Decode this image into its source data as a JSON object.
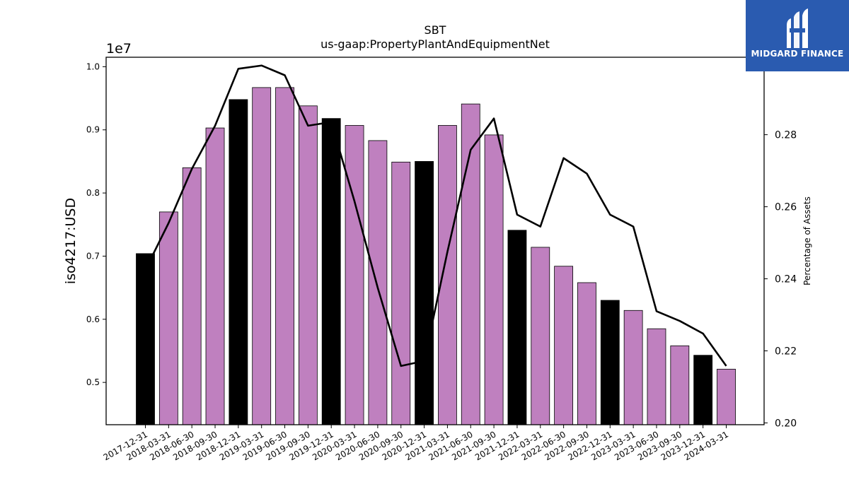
{
  "chart_data": {
    "type": "bar",
    "title": "SBT",
    "subtitle": "us-gaap:PropertyPlantAndEquipmentNet",
    "ylabel": "iso4217:USD",
    "y_offset_label": "1e7",
    "y2label": "Percentage of Assets",
    "ylim": [
      4330000,
      10150000
    ],
    "y2lim": [
      0.1995,
      0.3015
    ],
    "yticks": [
      "0.5",
      "0.6",
      "0.7",
      "0.8",
      "0.9",
      "1.0"
    ],
    "y2ticks": [
      "0.20",
      "0.22",
      "0.24",
      "0.26",
      "0.28"
    ],
    "categories": [
      "2017-12-31",
      "2018-03-31",
      "2018-06-30",
      "2018-09-30",
      "2018-12-31",
      "2019-03-31",
      "2019-06-30",
      "2019-09-30",
      "2019-12-31",
      "2020-03-31",
      "2020-06-30",
      "2020-09-30",
      "2020-12-31",
      "2021-03-31",
      "2021-06-30",
      "2021-09-30",
      "2021-12-31",
      "2022-03-31",
      "2022-06-30",
      "2022-09-30",
      "2022-12-31",
      "2023-03-31",
      "2023-06-30",
      "2023-09-30",
      "2023-12-31",
      "2024-03-31"
    ],
    "series": [
      {
        "type": "bar",
        "values": [
          7040000,
          7700000,
          8400000,
          9030000,
          9480000,
          9670000,
          9670000,
          9380000,
          9180000,
          9070000,
          8830000,
          8490000,
          8500000,
          9070000,
          9410000,
          8920000,
          7410000,
          7140000,
          6840000,
          6580000,
          6300000,
          6140000,
          5850000,
          5580000,
          5430000,
          5210000
        ],
        "highlight": [
          true,
          false,
          false,
          false,
          true,
          false,
          false,
          false,
          true,
          false,
          false,
          false,
          true,
          false,
          false,
          false,
          true,
          false,
          false,
          false,
          true,
          false,
          false,
          false,
          true,
          false
        ],
        "color": "#bf80bf",
        "highlight_color": "#000000"
      },
      {
        "type": "line",
        "axis": "right",
        "values": [
          0.2425,
          0.2555,
          0.2705,
          0.2825,
          0.2983,
          0.2992,
          0.2965,
          0.2825,
          0.2835,
          0.2615,
          0.2375,
          0.2158,
          0.2172,
          0.2475,
          0.2758,
          0.2845,
          0.2578,
          0.2545,
          0.2735,
          0.2692,
          0.2578,
          0.2545,
          0.231,
          0.2283,
          0.2248,
          0.2158
        ],
        "color": "#000000"
      }
    ]
  },
  "brand": {
    "name": "MIDGARD FINANCE",
    "color": "#2a5bb0"
  }
}
